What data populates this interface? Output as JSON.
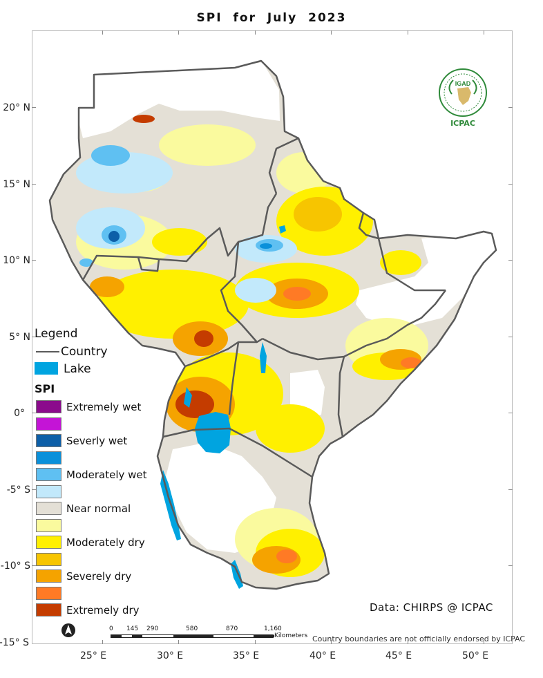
{
  "map": {
    "title": "SPI   for  July  2023",
    "lat_labels": [
      "20° N",
      "15° N",
      "10° N",
      "5° N",
      "0°",
      "-5° S",
      "-10° S",
      "-15° S"
    ],
    "lon_labels": [
      "25° E",
      "30° E",
      "35° E",
      "40° E",
      "45° E",
      "50° E"
    ],
    "legend": {
      "title": "Legend",
      "country_label": "Country",
      "lake_label": "Lake",
      "spi_title": "SPI",
      "classes": [
        {
          "label": "Extremely wet",
          "color": "#8b0a8c"
        },
        {
          "label": "",
          "color": "#c414d6"
        },
        {
          "label": "Severly wet",
          "color": "#0d5fa8"
        },
        {
          "label": "",
          "color": "#0a90da"
        },
        {
          "label": "Moderately wet",
          "color": "#5fc0f2"
        },
        {
          "label": "",
          "color": "#c2e9fb"
        },
        {
          "label": "Near normal",
          "color": "#e4e0d6"
        },
        {
          "label": "",
          "color": "#fafa9e"
        },
        {
          "label": "Moderately dry",
          "color": "#fff000"
        },
        {
          "label": "",
          "color": "#f7c500"
        },
        {
          "label": "Severely dry",
          "color": "#f5a300"
        },
        {
          "label": "",
          "color": "#ff7a25"
        },
        {
          "label": "Extremely dry",
          "color": "#c43c00"
        }
      ]
    },
    "logo": {
      "name": "IGAD",
      "caption": "ICPAC"
    },
    "data_credit": "Data: CHIRPS @ ICPAC",
    "scale": {
      "ticks": [
        "0",
        "145",
        "290",
        "580",
        "870",
        "1,160"
      ],
      "unit": "Kilometers"
    },
    "disclaimer": "Country boundaries are not officially endorsed by ICPAC",
    "colors": {
      "country_border": "#5a5a5a",
      "lake": "#00a4e0"
    }
  }
}
